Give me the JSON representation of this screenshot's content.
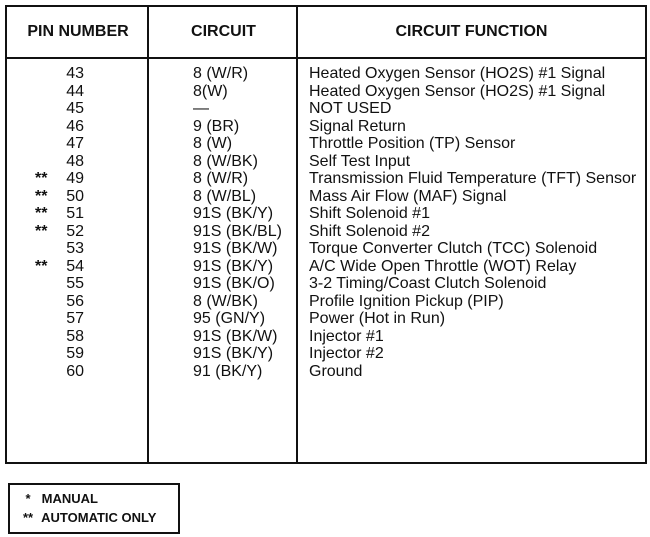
{
  "table": {
    "headers": [
      "PIN NUMBER",
      "CIRCUIT",
      "CIRCUIT FUNCTION"
    ],
    "rows": [
      {
        "mark": null,
        "pin": "43",
        "circuit": "8 (W/R)",
        "function": "Heated Oxygen Sensor (HO2S) #1 Signal"
      },
      {
        "mark": null,
        "pin": "44",
        "circuit": "8(W)",
        "function": "Heated Oxygen Sensor (HO2S) #1 Signal"
      },
      {
        "mark": null,
        "pin": "45",
        "circuit": "—",
        "function": "NOT USED"
      },
      {
        "mark": null,
        "pin": "46",
        "circuit": "9 (BR)",
        "function": "Signal Return"
      },
      {
        "mark": null,
        "pin": "47",
        "circuit": "8 (W)",
        "function": "Throttle Position (TP) Sensor"
      },
      {
        "mark": null,
        "pin": "48",
        "circuit": "8 (W/BK)",
        "function": "Self Test Input"
      },
      {
        "mark": "**",
        "pin": "49",
        "circuit": "8 (W/R)",
        "function": "Transmission Fluid Temperature (TFT) Sensor"
      },
      {
        "mark": "**",
        "pin": "50",
        "circuit": "8 (W/BL)",
        "function": "Mass Air Flow (MAF) Signal"
      },
      {
        "mark": "**",
        "pin": "51",
        "circuit": "91S (BK/Y)",
        "function": "Shift Solenoid #1"
      },
      {
        "mark": "**",
        "pin": "52",
        "circuit": "91S (BK/BL)",
        "function": "Shift Solenoid #2"
      },
      {
        "mark": null,
        "pin": "53",
        "circuit": "91S (BK/W)",
        "function": "Torque Converter Clutch (TCC) Solenoid"
      },
      {
        "mark": "**",
        "pin": "54",
        "circuit": "91S (BK/Y)",
        "function": "A/C Wide Open Throttle (WOT) Relay"
      },
      {
        "mark": null,
        "pin": "55",
        "circuit": "91S (BK/O)",
        "function": "3-2 Timing/Coast Clutch Solenoid"
      },
      {
        "mark": null,
        "pin": "56",
        "circuit": "8 (W/BK)",
        "function": "Profile Ignition Pickup (PIP)"
      },
      {
        "mark": null,
        "pin": "57",
        "circuit": "95 (GN/Y)",
        "function": "Power (Hot in Run)"
      },
      {
        "mark": null,
        "pin": "58",
        "circuit": "91S (BK/W)",
        "function": "Injector #1"
      },
      {
        "mark": null,
        "pin": "59",
        "circuit": "91S (BK/Y)",
        "function": "Injector #2"
      },
      {
        "mark": null,
        "pin": "60",
        "circuit": "91 (BK/Y)",
        "function": "Ground"
      }
    ]
  },
  "notes": [
    {
      "symbol": "*",
      "text": "MANUAL"
    },
    {
      "symbol": "**",
      "text": "AUTOMATIC ONLY"
    }
  ]
}
